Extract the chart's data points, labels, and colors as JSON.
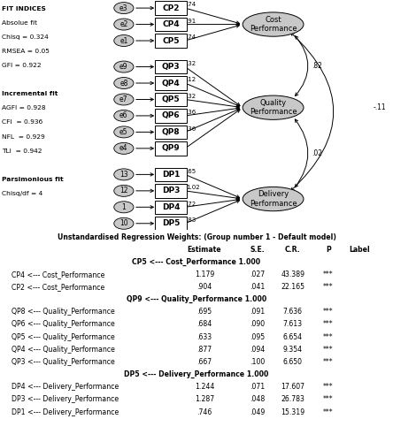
{
  "fit_text_bold": [
    "FIT INDICES",
    "Incremental fit",
    "Parsimonious fit"
  ],
  "fit_text_lines": [
    [
      "FIT INDICES",
      true
    ],
    [
      "Absolue fit",
      false
    ],
    [
      "Chisq = 0.324",
      false
    ],
    [
      "RMSEA = 0.05",
      false
    ],
    [
      "GFI = 0.922",
      false
    ],
    [
      "",
      false
    ],
    [
      "Incremental fit",
      true
    ],
    [
      "AGFI = 0.928",
      false
    ],
    [
      "CFI  = 0.936",
      false
    ],
    [
      "NFL  = 0.929",
      false
    ],
    [
      "TLI  = 0.942",
      false
    ],
    [
      "",
      false
    ],
    [
      "Parsimonious fit",
      true
    ],
    [
      "Chisq/df = 4",
      false
    ]
  ],
  "cp_indicators": [
    "CP2",
    "CP4",
    "CP5"
  ],
  "cp_errors": [
    "e3",
    "e2",
    "e1"
  ],
  "cp_loadings": [
    ".74",
    ".91",
    ".74"
  ],
  "qp_indicators": [
    "QP3",
    "QP4",
    "QP5",
    "QP6",
    "QP8",
    "QP9"
  ],
  "qp_errors": [
    "e9",
    "e8",
    "e7",
    "e6",
    "e5",
    "e4"
  ],
  "qp_loadings": [
    ".32",
    ".12",
    ".32",
    ".36",
    ".36",
    ""
  ],
  "dp_indicators": [
    "DP1",
    "DP3",
    "DP4",
    "DP5"
  ],
  "dp_errors": [
    "13",
    "12",
    "1",
    "10"
  ],
  "dp_loadings": [
    ".65",
    "1.02",
    ".72",
    ".83"
  ],
  "latent_labels": [
    "Cost\nPerformance",
    "Quality\nPerformance",
    "Delivery\nPerformance"
  ],
  "corr_cp_qp": ".82",
  "corr_cp_dp": "-.11",
  "corr_qp_dp": ".02",
  "table_title": "Unstandardised Regression Weights: (Group number 1 - Default model)",
  "col_headers": [
    "Estimate",
    "S.E.",
    "C.R.",
    "P",
    "Label"
  ],
  "table_rows": [
    [
      "CP5 <--- Cost_Performance",
      "1.000",
      "",
      "",
      "",
      ""
    ],
    [
      "CP4 <--- Cost_Performance",
      "1.179",
      ".027",
      "43.389",
      "***",
      ""
    ],
    [
      "CP2 <--- Cost_Performance",
      ".904",
      ".041",
      "22.165",
      "***",
      ""
    ],
    [
      "QP9 <--- Quality_Performance",
      "1.000",
      "",
      "",
      "",
      ""
    ],
    [
      "QP8 <--- Quality_Performance",
      ".695",
      ".091",
      "7.636",
      "***",
      ""
    ],
    [
      "QP6 <--- Quality_Performance",
      ".684",
      ".090",
      "7.613",
      "***",
      ""
    ],
    [
      "QP5 <--- Quality_Performance",
      ".633",
      ".095",
      "6.654",
      "***",
      ""
    ],
    [
      "QP4 <--- Quality_Performance",
      ".877",
      ".094",
      "9.354",
      "***",
      ""
    ],
    [
      "QP3 <--- Quality_Performance",
      ".667",
      ".100",
      "6.650",
      "***",
      ""
    ],
    [
      "DP5 <--- Delivery_Performance",
      "1.000",
      "",
      "",
      "",
      ""
    ],
    [
      "DP4 <--- Delivery_Performance",
      "1.244",
      ".071",
      "17.607",
      "***",
      ""
    ],
    [
      "DP3 <--- Delivery_Performance",
      "1.287",
      ".048",
      "26.783",
      "***",
      ""
    ],
    [
      "DP1 <--- Delivery_Performance",
      ".746",
      ".049",
      "15.319",
      "***",
      ""
    ]
  ]
}
